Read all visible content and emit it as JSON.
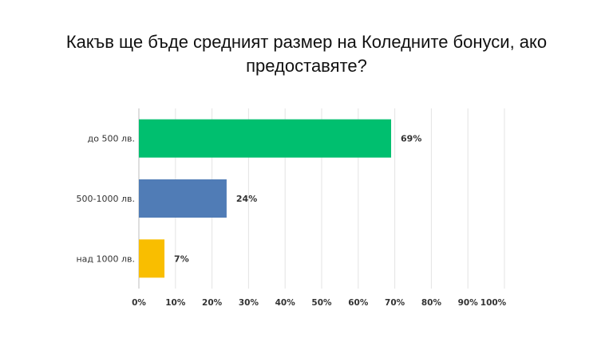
{
  "chart_data": {
    "type": "bar",
    "orientation": "horizontal",
    "title": "Какъв ще бъде средният размер на Коледните бонуси, ако предоставяте?",
    "categories": [
      "до 500 лв.",
      "500-1000 лв.",
      "над 1000 лв."
    ],
    "values": [
      69,
      24,
      7
    ],
    "value_labels": [
      "69%",
      "24%",
      "7%"
    ],
    "colors": [
      "#00BF6F",
      "#507CB6",
      "#F9BE00"
    ],
    "x_ticks": [
      "0%",
      "10%",
      "20%",
      "30%",
      "40%",
      "50%",
      "60%",
      "70%",
      "80%",
      "90%",
      "100%"
    ],
    "xlim": [
      0,
      100
    ],
    "grid": "vertical",
    "legend": "none"
  }
}
